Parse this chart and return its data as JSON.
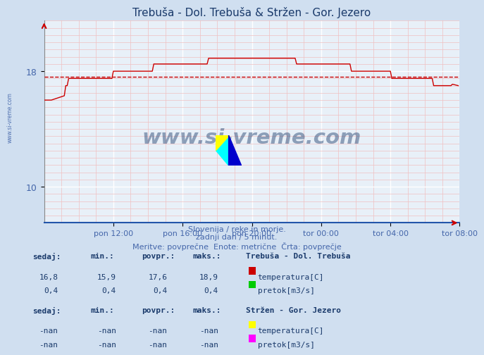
{
  "title": "Trebuša - Dol. Trebuša & Stržen - Gor. Jezero",
  "title_color": "#1a3a6b",
  "bg_color": "#d0dff0",
  "plot_bg_color": "#e8f0f8",
  "grid_color_major": "#ffffff",
  "grid_color_minor": "#f0c0c0",
  "xlim_start": 0,
  "xlim_end": 288,
  "ylim": [
    7.5,
    21.5
  ],
  "yticks_major": [
    10,
    18
  ],
  "xtick_labels": [
    "pon 12:00",
    "pon 16:00",
    "pon 20:00",
    "tor 00:00",
    "tor 04:00",
    "tor 08:00"
  ],
  "xtick_positions": [
    48,
    96,
    144,
    192,
    240,
    288
  ],
  "line_color": "#cc0000",
  "avg_line_color": "#cc0000",
  "avg_line_value": 17.6,
  "subtitle_lines": [
    "Slovenija / reke in morje.",
    "zadnji dan / 5 minut.",
    "Meritve: povprečne  Enote: metrične  Črta: povprečje"
  ],
  "subtitle_color": "#4466aa",
  "info_color": "#1a3a6b",
  "watermark_text": "www.si-vreme.com",
  "watermark_color": "#1a3a6b",
  "sidebar_text": "www.si-vreme.com",
  "station1_name": "Trebuša - Dol. Trebuša",
  "station2_name": "Stržen - Gor. Jezero",
  "headers": [
    "sedaj:",
    "min.:",
    "povpr.:",
    "maks.:"
  ],
  "vals_temp1": [
    "16,8",
    "15,9",
    "17,6",
    "18,9"
  ],
  "vals_flow1": [
    "0,4",
    "0,4",
    "0,4",
    "0,4"
  ],
  "vals_temp2": [
    "-nan",
    "-nan",
    "-nan",
    "-nan"
  ],
  "vals_flow2": [
    "-nan",
    "-nan",
    "-nan",
    "-nan"
  ],
  "color_temp1": "#cc0000",
  "color_flow1": "#00cc00",
  "color_temp2": "#ffff00",
  "color_flow2": "#ff00ff",
  "label_temp": "temperatura[C]",
  "label_flow": "pretok[m3/s]"
}
